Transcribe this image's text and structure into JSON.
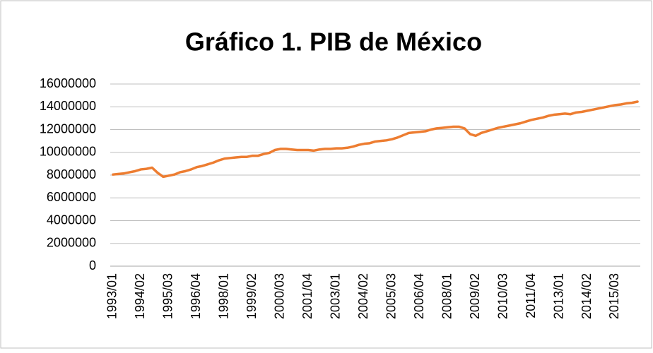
{
  "chart_data": {
    "type": "line",
    "title": "Gráfico 1. PIB de México",
    "categories": [
      "1993/01",
      null,
      null,
      null,
      null,
      "1994/02",
      null,
      null,
      null,
      null,
      "1995/03",
      null,
      null,
      null,
      null,
      "1996/04",
      null,
      null,
      null,
      null,
      "1998/01",
      null,
      null,
      null,
      null,
      "1999/02",
      null,
      null,
      null,
      null,
      "2000/03",
      null,
      null,
      null,
      null,
      "2001/04",
      null,
      null,
      null,
      null,
      "2003/01",
      null,
      null,
      null,
      null,
      "2004/02",
      null,
      null,
      null,
      null,
      "2005/03",
      null,
      null,
      null,
      null,
      "2006/04",
      null,
      null,
      null,
      null,
      "2008/01",
      null,
      null,
      null,
      null,
      "2009/02",
      null,
      null,
      null,
      null,
      "2010/03",
      null,
      null,
      null,
      null,
      "2011/04",
      null,
      null,
      null,
      null,
      "2013/01",
      null,
      null,
      null,
      null,
      "2014/02",
      null,
      null,
      null,
      null,
      "2015/03",
      null,
      null,
      null,
      null
    ],
    "series": [
      {
        "color": "#ed7d31",
        "values": [
          8050000,
          8100000,
          8150000,
          8250000,
          8350000,
          8500000,
          8550000,
          8650000,
          8200000,
          7850000,
          7950000,
          8050000,
          8250000,
          8350000,
          8500000,
          8700000,
          8800000,
          8950000,
          9100000,
          9300000,
          9450000,
          9500000,
          9550000,
          9600000,
          9600000,
          9700000,
          9700000,
          9850000,
          9950000,
          10200000,
          10300000,
          10300000,
          10250000,
          10200000,
          10200000,
          10200000,
          10150000,
          10250000,
          10300000,
          10300000,
          10350000,
          10350000,
          10400000,
          10500000,
          10650000,
          10750000,
          10800000,
          10950000,
          11000000,
          11050000,
          11150000,
          11300000,
          11500000,
          11700000,
          11750000,
          11800000,
          11850000,
          12000000,
          12100000,
          12150000,
          12200000,
          12250000,
          12250000,
          12100000,
          11600000,
          11450000,
          11700000,
          11850000,
          12000000,
          12150000,
          12250000,
          12350000,
          12450000,
          12550000,
          12700000,
          12850000,
          12950000,
          13050000,
          13200000,
          13300000,
          13350000,
          13400000,
          13350000,
          13500000,
          13550000,
          13650000,
          13750000,
          13850000,
          13950000,
          14050000,
          14150000,
          14200000,
          14300000,
          14350000,
          14450000
        ]
      }
    ],
    "ylim": [
      0,
      16000000
    ],
    "yticks": [
      0,
      2000000,
      4000000,
      6000000,
      8000000,
      10000000,
      12000000,
      14000000,
      16000000
    ],
    "grid": true
  }
}
